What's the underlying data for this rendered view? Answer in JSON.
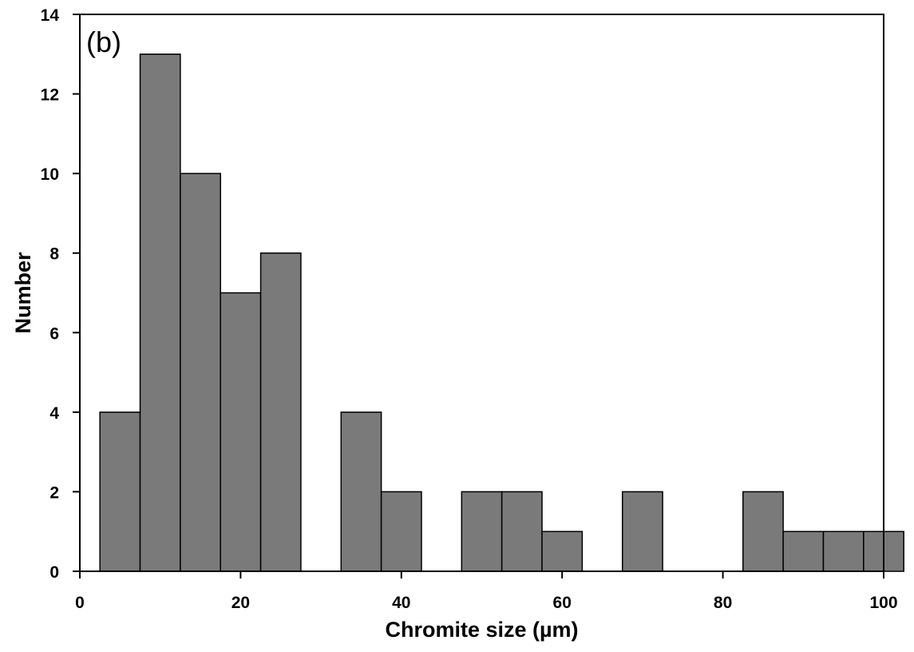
{
  "chart_data": {
    "type": "bar",
    "panel_label": "(b)",
    "xlabel": "Chromite size (µm)",
    "ylabel": "Number",
    "xlim": [
      0,
      100
    ],
    "ylim": [
      0,
      14
    ],
    "x_ticks": [
      0,
      20,
      40,
      60,
      80,
      100
    ],
    "y_ticks": [
      0,
      2,
      4,
      6,
      8,
      10,
      12,
      14
    ],
    "bin_width": 5,
    "bins": [
      {
        "x": 5,
        "value": 4
      },
      {
        "x": 10,
        "value": 13
      },
      {
        "x": 15,
        "value": 10
      },
      {
        "x": 20,
        "value": 7
      },
      {
        "x": 25,
        "value": 8
      },
      {
        "x": 35,
        "value": 4
      },
      {
        "x": 40,
        "value": 2
      },
      {
        "x": 50,
        "value": 2
      },
      {
        "x": 55,
        "value": 2
      },
      {
        "x": 60,
        "value": 1
      },
      {
        "x": 70,
        "value": 2
      },
      {
        "x": 85,
        "value": 2
      },
      {
        "x": 90,
        "value": 1
      },
      {
        "x": 95,
        "value": 1
      },
      {
        "x": 100,
        "value": 1
      }
    ],
    "bar_color": "#7a7a7a",
    "bar_edge_color": "#000000",
    "grid": false,
    "legend": "none"
  }
}
